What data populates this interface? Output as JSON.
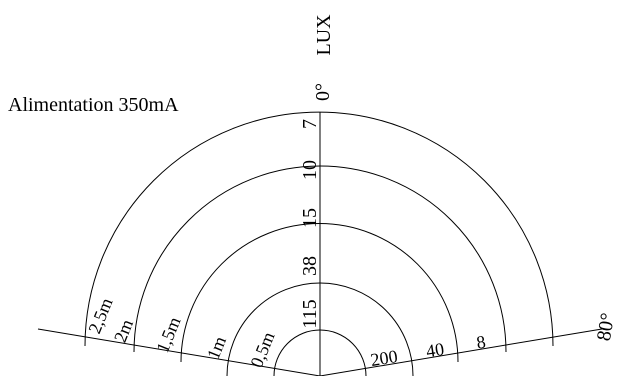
{
  "supply_label": "Alimentation 350mA",
  "axis_label": "LUX",
  "center_angle_label": "0°",
  "edge_angle_label": "80°",
  "lux_values": [
    "7",
    "10",
    "15",
    "38",
    "115"
  ],
  "distance_labels": [
    "2,5m",
    "2m",
    "1,5m",
    "1m",
    "0,5m"
  ],
  "diameter_labels": [
    "200",
    "40",
    "8"
  ],
  "colors": {
    "line": "#000000",
    "background": "#ffffff"
  }
}
